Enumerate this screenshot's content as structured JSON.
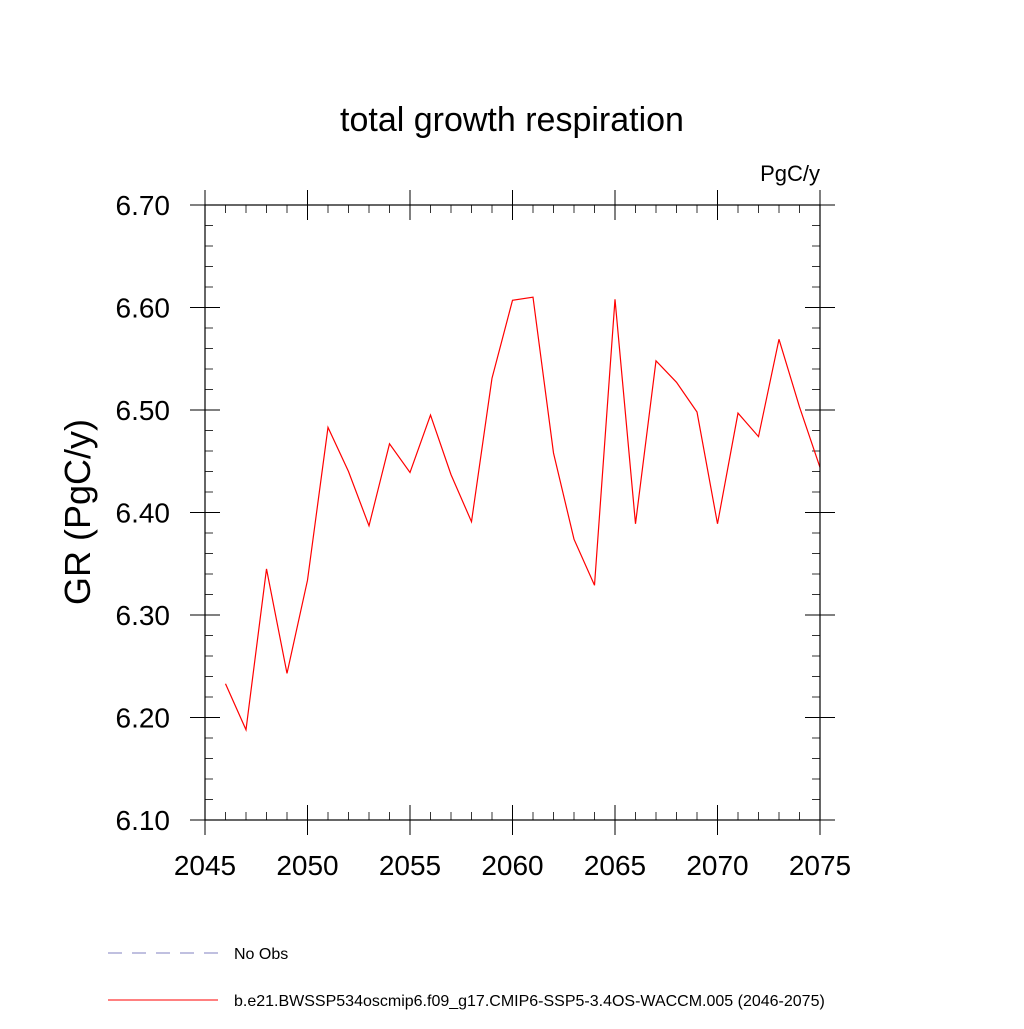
{
  "chart_data": {
    "type": "line",
    "title": "total growth respiration",
    "units": "PgC/y",
    "xlabel": "",
    "ylabel": "GR  (PgC/y)",
    "xlim": [
      2045,
      2075
    ],
    "ylim": [
      6.1,
      6.7
    ],
    "xticks": [
      "2045",
      "2050",
      "2055",
      "2060",
      "2065",
      "2070",
      "2075"
    ],
    "yticks": [
      "6.10",
      "6.20",
      "6.30",
      "6.40",
      "6.50",
      "6.60",
      "6.70"
    ],
    "grid": false,
    "legend_position": "bottom-left",
    "series": [
      {
        "name": "b.e21.BWSSP534oscmip6.f09_g17.CMIP6-SSP5-3.4OS-WACCM.005 (2046-2075)",
        "color": "#ff0000",
        "style": "solid",
        "x": [
          2046,
          2047,
          2048,
          2049,
          2050,
          2051,
          2052,
          2053,
          2054,
          2055,
          2056,
          2057,
          2058,
          2059,
          2060,
          2061,
          2062,
          2063,
          2064,
          2065,
          2066,
          2067,
          2068,
          2069,
          2070,
          2071,
          2072,
          2073,
          2074,
          2075
        ],
        "y": [
          6.233,
          6.188,
          6.345,
          6.243,
          6.334,
          6.483,
          6.44,
          6.387,
          6.467,
          6.439,
          6.495,
          6.437,
          6.391,
          6.531,
          6.607,
          6.61,
          6.458,
          6.374,
          6.329,
          6.608,
          6.389,
          6.548,
          6.527,
          6.498,
          6.389,
          6.497,
          6.474,
          6.569,
          6.503,
          6.444
        ]
      }
    ],
    "legend": [
      {
        "label": "No Obs",
        "color": "#8080c0",
        "style": "dashed"
      },
      {
        "label": "b.e21.BWSSP534oscmip6.f09_g17.CMIP6-SSP5-3.4OS-WACCM.005 (2046-2075)",
        "color": "#ff0000",
        "style": "solid"
      }
    ]
  }
}
